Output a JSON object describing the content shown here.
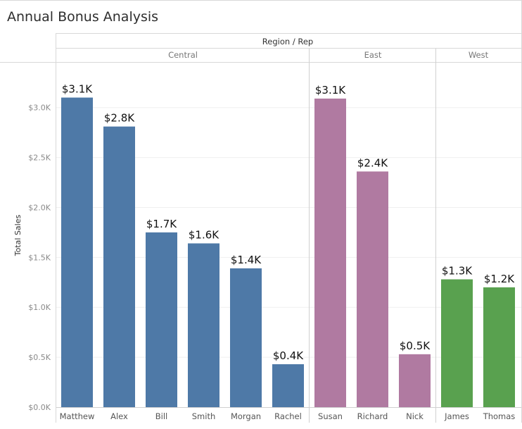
{
  "chart_data": {
    "type": "bar",
    "title": "Annual Bonus Analysis",
    "header_label": "Region / Rep",
    "ylabel": "Total Sales",
    "ylim": [
      0,
      3250
    ],
    "yticks": [
      0,
      500,
      1000,
      1500,
      2000,
      2500,
      3000
    ],
    "ytick_labels": [
      "$0.0K",
      "$0.5K",
      "$1.0K",
      "$1.5K",
      "$2.0K",
      "$2.5K",
      "$3.0K"
    ],
    "grid": true,
    "groups": [
      {
        "region": "Central",
        "color": "#4e79a7",
        "categories": [
          "Matthew",
          "Alex",
          "Bill",
          "Smith",
          "Morgan",
          "Rachel"
        ],
        "values": [
          3100,
          2810,
          1750,
          1640,
          1390,
          430
        ],
        "labels": [
          "$3.1K",
          "$2.8K",
          "$1.7K",
          "$1.6K",
          "$1.4K",
          "$0.4K"
        ]
      },
      {
        "region": "East",
        "color": "#b07aa1",
        "categories": [
          "Susan",
          "Richard",
          "Nick"
        ],
        "values": [
          3090,
          2360,
          530
        ],
        "labels": [
          "$3.1K",
          "$2.4K",
          "$0.5K"
        ]
      },
      {
        "region": "West",
        "color": "#59a14f",
        "categories": [
          "James",
          "Thomas"
        ],
        "values": [
          1280,
          1200
        ],
        "labels": [
          "$1.3K",
          "$1.2K"
        ]
      }
    ]
  }
}
